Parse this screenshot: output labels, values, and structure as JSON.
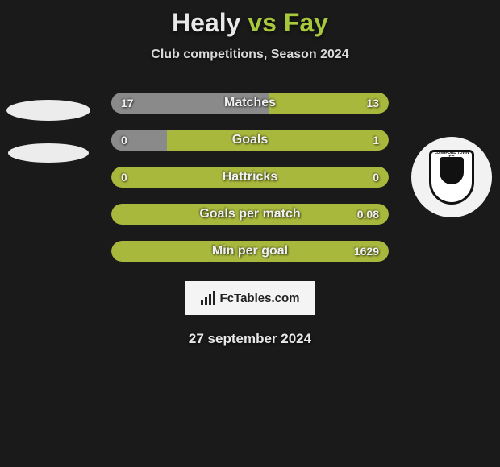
{
  "title": {
    "player1": "Healy",
    "vs": "vs",
    "player2": "Fay"
  },
  "subtitle": "Club competitions, Season 2024",
  "date": "27 september 2024",
  "brand": "FcTables.com",
  "colors": {
    "left_fill": "#8a8a8a",
    "right_fill": "#a8b83c",
    "empty_fill": "#a8b83c",
    "background": "#1a1a1a",
    "accent": "#a8c83c"
  },
  "bars": [
    {
      "label": "Matches",
      "left": "17",
      "right": "13",
      "left_pct": 57,
      "right_pct": 43,
      "left_color": "#8a8a8a",
      "right_color": "#a8b83c"
    },
    {
      "label": "Goals",
      "left": "0",
      "right": "1",
      "left_pct": 20,
      "right_pct": 100,
      "left_color": "#8a8a8a",
      "right_color": "#a8b83c"
    },
    {
      "label": "Hattricks",
      "left": "0",
      "right": "0",
      "left_pct": 0,
      "right_pct": 100,
      "left_color": "#8a8a8a",
      "right_color": "#a8b83c"
    },
    {
      "label": "Goals per match",
      "left": "",
      "right": "0.08",
      "left_pct": 0,
      "right_pct": 100,
      "left_color": "#8a8a8a",
      "right_color": "#a8b83c"
    },
    {
      "label": "Min per goal",
      "left": "",
      "right": "1629",
      "left_pct": 0,
      "right_pct": 100,
      "left_color": "#8a8a8a",
      "right_color": "#a8b83c"
    }
  ],
  "badge_right": {
    "text": "LONGFORD TOWN F.C"
  }
}
